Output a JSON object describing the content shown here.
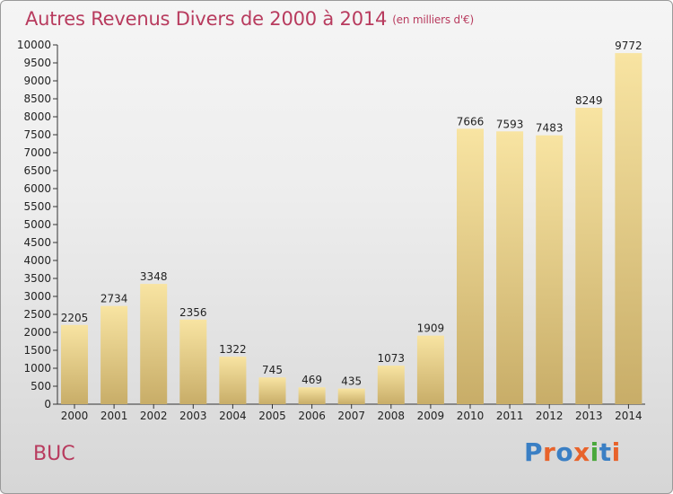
{
  "title": "Autres Revenus Divers de 2000 à 2014",
  "subtitle": "(en milliers d'€)",
  "commune": "BUC",
  "logo_text": "Proxiti",
  "colors": {
    "title": "#b83b5e",
    "bar_light": "#f8e4a2",
    "bar_dark": "#c8ad68",
    "logo": [
      "#3a7fc4",
      "#e8632b",
      "#3a7fc4",
      "#e8632b",
      "#4aa83c",
      "#3a7fc4",
      "#e8632b"
    ]
  },
  "chart_data": {
    "type": "bar",
    "categories": [
      "2000",
      "2001",
      "2002",
      "2003",
      "2004",
      "2005",
      "2006",
      "2007",
      "2008",
      "2009",
      "2010",
      "2011",
      "2012",
      "2013",
      "2014"
    ],
    "values": [
      2205,
      2734,
      3348,
      2356,
      1322,
      745,
      469,
      435,
      1073,
      1909,
      7666,
      7593,
      7483,
      8249,
      9772
    ],
    "ylim": [
      0,
      10000
    ],
    "yticks": [
      0,
      500,
      1000,
      1500,
      2000,
      2500,
      3000,
      3500,
      4000,
      4500,
      5000,
      5500,
      6000,
      6500,
      7000,
      7500,
      8000,
      8500,
      9000,
      9500,
      10000
    ],
    "grid": false,
    "data_labels": true
  }
}
